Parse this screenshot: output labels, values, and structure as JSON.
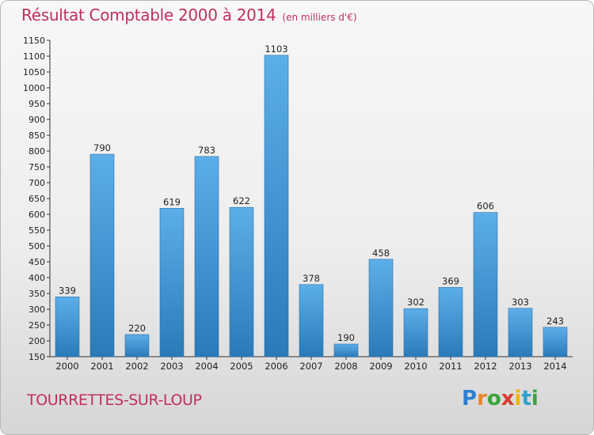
{
  "header": {
    "title": "Résultat Comptable 2000 à 2014",
    "subtitle": "(en milliers d'€)"
  },
  "footer": {
    "place": "TOURRETTES-SUR-LOUP",
    "logo": "Proxiti"
  },
  "colors": {
    "accent": "#c0305a",
    "bar_top": "#5caee8",
    "bar_bottom": "#2a7ab8"
  },
  "chart_data": {
    "type": "bar",
    "categories": [
      "2000",
      "2001",
      "2002",
      "2003",
      "2004",
      "2005",
      "2006",
      "2007",
      "2008",
      "2009",
      "2010",
      "2011",
      "2012",
      "2013",
      "2014"
    ],
    "values": [
      339,
      790,
      220,
      619,
      783,
      622,
      1103,
      378,
      190,
      458,
      302,
      369,
      606,
      303,
      243
    ],
    "ylim": [
      150,
      1150
    ],
    "ytick_step": 50,
    "grid": false,
    "legend": "none"
  }
}
